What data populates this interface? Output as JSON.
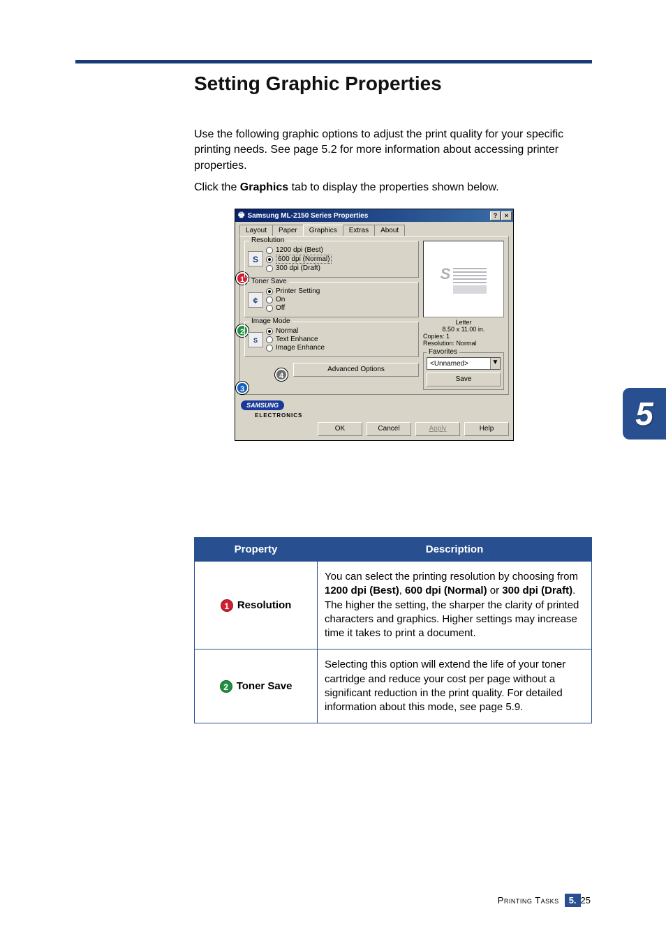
{
  "page": {
    "top_rule_color": "#1a3a7a",
    "heading": "Setting Graphic Properties",
    "para1": "Use the following graphic options to adjust the print quality for your specific printing needs. See page 5.2 for more information about accessing printer properties.",
    "para2_pre": "Click the ",
    "para2_bold": "Graphics",
    "para2_post": " tab to display the properties shown below.",
    "chapter_number": "5",
    "chapter_tab_bg": "#285090",
    "footer_section": "Printing Tasks",
    "footer_chapter": "5.",
    "footer_page": "25"
  },
  "callout_colors": {
    "1": "#d02030",
    "2": "#209040",
    "3": "#1060c0",
    "4": "#707070"
  },
  "dialog": {
    "title": "Samsung ML-2150 Series Properties",
    "help_btn": "?",
    "close_btn": "×",
    "tabs": [
      "Layout",
      "Paper",
      "Graphics",
      "Extras",
      "About"
    ],
    "active_tab_index": 2,
    "groups": {
      "resolution": {
        "legend": "Resolution",
        "icon_letter": "S",
        "options": [
          {
            "label": "1200 dpi (Best)",
            "selected": false
          },
          {
            "label": "600 dpi (Normal)",
            "selected": true,
            "dotted": true
          },
          {
            "label": "300 dpi (Draft)",
            "selected": false
          }
        ]
      },
      "toner_save": {
        "legend": "Toner Save",
        "options": [
          {
            "label": "Printer Setting",
            "selected": true
          },
          {
            "label": "On",
            "selected": false
          },
          {
            "label": "Off",
            "selected": false
          }
        ]
      },
      "image_mode": {
        "legend": "Image Mode",
        "options": [
          {
            "label": "Normal",
            "selected": true
          },
          {
            "label": "Text Enhance",
            "selected": false
          },
          {
            "label": "Image Enhance",
            "selected": false
          }
        ]
      }
    },
    "advanced_btn": "Advanced Options",
    "preview": {
      "paper_label": "Letter",
      "dims": "8.50 x 11.00 in.",
      "copies": "Copies: 1",
      "resolution": "Resolution: Normal"
    },
    "favorites": {
      "legend": "Favorites",
      "value": "<Unnamed>",
      "save_btn": "Save"
    },
    "brand": "SAMSUNG",
    "brand_sub": "ELECTRONICS",
    "buttons": {
      "ok": "OK",
      "cancel": "Cancel",
      "apply": "Apply",
      "help": "Help"
    }
  },
  "table": {
    "header_property": "Property",
    "header_description": "Description",
    "header_bg": "#285090",
    "rows": [
      {
        "badge": "1",
        "badge_color": "#d02030",
        "name": "Resolution",
        "desc_parts": [
          {
            "t": "You can select the printing resolution by choosing from ",
            "b": false
          },
          {
            "t": "1200 dpi (Best)",
            "b": true
          },
          {
            "t": ", ",
            "b": false
          },
          {
            "t": "600 dpi (Normal)",
            "b": true
          },
          {
            "t": " or ",
            "b": false
          },
          {
            "t": "300 dpi (Draft)",
            "b": true
          },
          {
            "t": ". The higher the setting, the sharper the clarity of printed characters and graphics. Higher settings may increase time it takes to print a document.",
            "b": false
          }
        ]
      },
      {
        "badge": "2",
        "badge_color": "#209040",
        "name": "Toner Save",
        "desc_parts": [
          {
            "t": "Selecting this option will extend the life of your toner cartridge and reduce your cost per page without a significant reduction in the print quality. For detailed information about this mode, see page 5.9.",
            "b": false
          }
        ]
      }
    ]
  }
}
